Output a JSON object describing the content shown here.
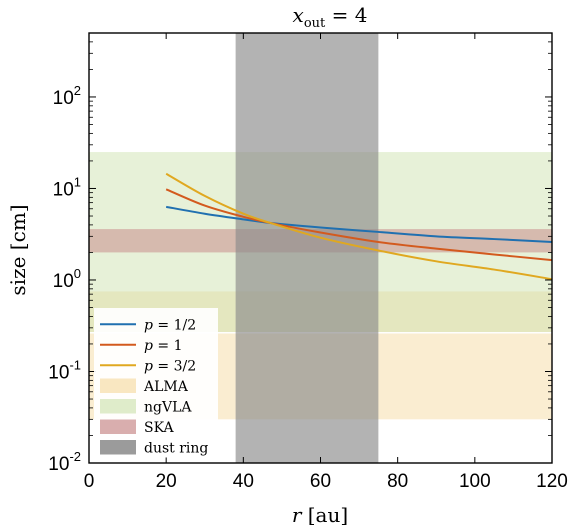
{
  "chart_data": {
    "type": "line",
    "title": "x_out = 4",
    "title_parts": {
      "base": "x",
      "sub": "out",
      "rest": " = 4"
    },
    "xlabel": "r [au]",
    "xlabel_parts": {
      "var": "r",
      "unit": " [au]"
    },
    "ylabel": "size [cm]",
    "xlim": [
      0,
      120
    ],
    "ylim": [
      0.01,
      500
    ],
    "yscale": "log",
    "grid": false,
    "legend_position": "bottom-left",
    "xticks": [
      0,
      20,
      40,
      60,
      80,
      100,
      120
    ],
    "yticks": [
      {
        "value": 0.01,
        "base": "10",
        "exp": "-2"
      },
      {
        "value": 0.1,
        "base": "10",
        "exp": "-1"
      },
      {
        "value": 1,
        "base": "10",
        "exp": "0"
      },
      {
        "value": 10,
        "base": "10",
        "exp": "1"
      },
      {
        "value": 100,
        "base": "10",
        "exp": "2"
      }
    ],
    "bands": [
      {
        "name": "ALMA",
        "y_ranges": [
          [
            0.03,
            0.26
          ],
          [
            0.27,
            0.75
          ]
        ],
        "color": "#f5d79a",
        "opacity": 0.45
      },
      {
        "name": "ngVLA",
        "y_ranges": [
          [
            0.27,
            25
          ]
        ],
        "color": "#c9dfa8",
        "opacity": 0.45
      },
      {
        "name": "SKA",
        "y_ranges": [
          [
            2.0,
            3.6
          ]
        ],
        "color": "#c98c8c",
        "opacity": 0.55
      }
    ],
    "dust_ring": {
      "name": "dust ring",
      "x_range": [
        38,
        75
      ],
      "color": "#8a8a8a",
      "opacity": 0.65
    },
    "series": [
      {
        "name": "p = 1/2",
        "label_var": "p",
        "label_val": " = 1/2",
        "color": "#2070b0",
        "x": [
          20,
          30,
          40,
          47,
          60,
          75,
          90,
          105,
          120
        ],
        "y": [
          6.3,
          5.3,
          4.6,
          4.2,
          3.75,
          3.35,
          3.0,
          2.8,
          2.6
        ]
      },
      {
        "name": "p = 1",
        "label_var": "p",
        "label_val": " = 1",
        "color": "#d35a1e",
        "x": [
          20,
          30,
          40,
          47,
          60,
          75,
          90,
          105,
          120
        ],
        "y": [
          9.8,
          6.5,
          4.9,
          4.2,
          3.3,
          2.6,
          2.2,
          1.9,
          1.65
        ]
      },
      {
        "name": "p = 3/2",
        "label_var": "p",
        "label_val": " = 3/2",
        "color": "#e0a820",
        "x": [
          20,
          30,
          40,
          47,
          60,
          75,
          90,
          105,
          120
        ],
        "y": [
          14.5,
          8.3,
          5.3,
          4.2,
          2.9,
          2.1,
          1.6,
          1.3,
          1.02
        ]
      }
    ]
  }
}
